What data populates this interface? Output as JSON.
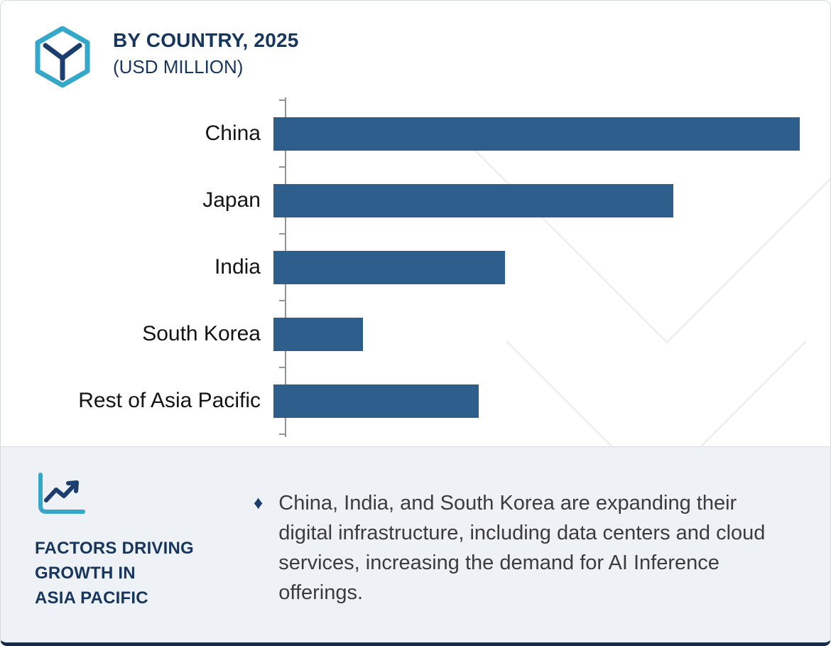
{
  "header": {
    "title_line1": "BY COUNTRY, 2025",
    "title_line2": "(USD MILLION)"
  },
  "chart_data": {
    "type": "bar",
    "orientation": "horizontal",
    "title": "BY COUNTRY, 2025",
    "subtitle": "(USD MILLION)",
    "unit": "USD Million",
    "categories": [
      "China",
      "Japan",
      "India",
      "South Korea",
      "Rest of Asia Pacific"
    ],
    "values": [
      100,
      76,
      44,
      17,
      39
    ],
    "values_note": "relative bar lengths, China = 100; no numeric axis or data labels shown in chart",
    "bar_color": "#2d5e8c",
    "axis_color": "#8f959c",
    "grid": false,
    "legend": false
  },
  "footer": {
    "heading_line1": "FACTORS DRIVING",
    "heading_line2": "GROWTH IN",
    "heading_line3": "ASIA PACIFIC",
    "bullet_glyph": "♦",
    "bullet_text": "China, India, and South Korea are expanding their digital infrastructure, including data centers and cloud services, increasing the demand for AI Inference offerings."
  },
  "icons": {
    "logo": "hexagon-y-logo",
    "footer_icon": "line-chart-icon",
    "bullet": "diamond-bullet"
  },
  "colors": {
    "accent_teal": "#35a8ca",
    "navy": "#17365d",
    "bar_blue": "#2d5e8c",
    "footer_background": "#eef1f5",
    "bottom_border": "#182a49"
  }
}
